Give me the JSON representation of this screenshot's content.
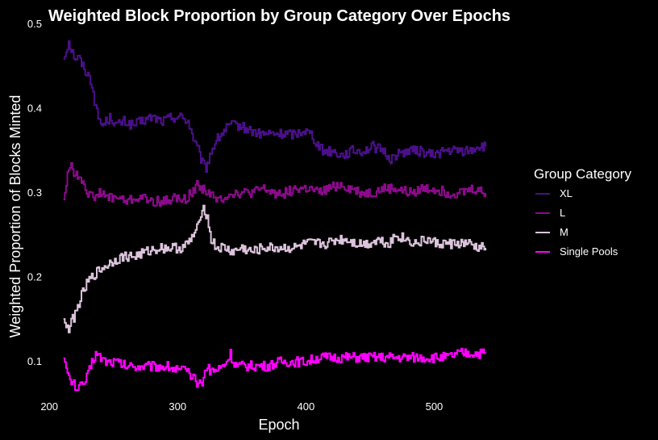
{
  "chart_data": {
    "type": "line",
    "title": "Weighted Block Proportion by Group Category Over Epochs",
    "xlabel": "Epoch",
    "ylabel": "Weighted Proportion of Blocks Minted",
    "xlim": [
      198,
      550
    ],
    "ylim": [
      0.06,
      0.5
    ],
    "x_ticks": [
      200,
      300,
      400,
      500
    ],
    "y_ticks": [
      0.1,
      0.2,
      0.3,
      0.4,
      0.5
    ],
    "grid": false,
    "legend": {
      "title": "Group Category",
      "position": "right"
    },
    "background": "#000000",
    "series": [
      {
        "name": "XL",
        "color": "#4b0f8a",
        "points": [
          [
            211,
            0.46
          ],
          [
            213,
            0.47
          ],
          [
            215,
            0.48
          ],
          [
            217,
            0.47
          ],
          [
            220,
            0.46
          ],
          [
            223,
            0.46
          ],
          [
            226,
            0.45
          ],
          [
            230,
            0.44
          ],
          [
            233,
            0.43
          ],
          [
            236,
            0.4
          ],
          [
            238,
            0.39
          ],
          [
            241,
            0.38
          ],
          [
            244,
            0.385
          ],
          [
            248,
            0.39
          ],
          [
            252,
            0.38
          ],
          [
            258,
            0.385
          ],
          [
            265,
            0.38
          ],
          [
            272,
            0.385
          ],
          [
            280,
            0.39
          ],
          [
            288,
            0.385
          ],
          [
            295,
            0.39
          ],
          [
            303,
            0.39
          ],
          [
            308,
            0.385
          ],
          [
            311,
            0.37
          ],
          [
            313,
            0.36
          ],
          [
            316,
            0.35
          ],
          [
            319,
            0.335
          ],
          [
            322,
            0.33
          ],
          [
            325,
            0.345
          ],
          [
            329,
            0.36
          ],
          [
            334,
            0.37
          ],
          [
            340,
            0.38
          ],
          [
            347,
            0.38
          ],
          [
            355,
            0.375
          ],
          [
            363,
            0.37
          ],
          [
            372,
            0.37
          ],
          [
            382,
            0.37
          ],
          [
            392,
            0.37
          ],
          [
            398,
            0.375
          ],
          [
            404,
            0.37
          ],
          [
            408,
            0.36
          ],
          [
            413,
            0.35
          ],
          [
            420,
            0.35
          ],
          [
            428,
            0.345
          ],
          [
            436,
            0.35
          ],
          [
            445,
            0.35
          ],
          [
            452,
            0.355
          ],
          [
            460,
            0.35
          ],
          [
            466,
            0.34
          ],
          [
            470,
            0.345
          ],
          [
            478,
            0.35
          ],
          [
            488,
            0.35
          ],
          [
            498,
            0.345
          ],
          [
            508,
            0.35
          ],
          [
            518,
            0.35
          ],
          [
            528,
            0.35
          ],
          [
            533,
            0.355
          ],
          [
            540,
            0.355
          ]
        ]
      },
      {
        "name": "L",
        "color": "#8b0a8b",
        "points": [
          [
            211,
            0.295
          ],
          [
            213,
            0.31
          ],
          [
            215,
            0.33
          ],
          [
            217,
            0.335
          ],
          [
            220,
            0.32
          ],
          [
            223,
            0.32
          ],
          [
            226,
            0.315
          ],
          [
            230,
            0.3
          ],
          [
            233,
            0.295
          ],
          [
            238,
            0.3
          ],
          [
            245,
            0.295
          ],
          [
            252,
            0.295
          ],
          [
            260,
            0.29
          ],
          [
            270,
            0.295
          ],
          [
            280,
            0.29
          ],
          [
            290,
            0.29
          ],
          [
            298,
            0.295
          ],
          [
            303,
            0.29
          ],
          [
            307,
            0.295
          ],
          [
            311,
            0.3
          ],
          [
            315,
            0.31
          ],
          [
            320,
            0.305
          ],
          [
            325,
            0.3
          ],
          [
            330,
            0.29
          ],
          [
            335,
            0.295
          ],
          [
            342,
            0.3
          ],
          [
            350,
            0.3
          ],
          [
            358,
            0.3
          ],
          [
            366,
            0.305
          ],
          [
            375,
            0.3
          ],
          [
            383,
            0.3
          ],
          [
            392,
            0.305
          ],
          [
            402,
            0.305
          ],
          [
            410,
            0.3
          ],
          [
            418,
            0.305
          ],
          [
            426,
            0.31
          ],
          [
            435,
            0.305
          ],
          [
            443,
            0.3
          ],
          [
            452,
            0.3
          ],
          [
            460,
            0.305
          ],
          [
            470,
            0.305
          ],
          [
            480,
            0.3
          ],
          [
            490,
            0.305
          ],
          [
            500,
            0.305
          ],
          [
            510,
            0.3
          ],
          [
            520,
            0.3
          ],
          [
            530,
            0.305
          ],
          [
            540,
            0.3
          ]
        ]
      },
      {
        "name": "M",
        "color": "#dcc4dc",
        "points": [
          [
            211,
            0.155
          ],
          [
            213,
            0.14
          ],
          [
            215,
            0.14
          ],
          [
            218,
            0.15
          ],
          [
            221,
            0.16
          ],
          [
            224,
            0.175
          ],
          [
            227,
            0.185
          ],
          [
            230,
            0.195
          ],
          [
            233,
            0.2
          ],
          [
            236,
            0.205
          ],
          [
            240,
            0.21
          ],
          [
            245,
            0.215
          ],
          [
            250,
            0.22
          ],
          [
            258,
            0.225
          ],
          [
            266,
            0.225
          ],
          [
            275,
            0.23
          ],
          [
            285,
            0.235
          ],
          [
            295,
            0.235
          ],
          [
            303,
            0.235
          ],
          [
            308,
            0.24
          ],
          [
            312,
            0.25
          ],
          [
            316,
            0.26
          ],
          [
            319,
            0.285
          ],
          [
            321,
            0.28
          ],
          [
            323,
            0.27
          ],
          [
            326,
            0.245
          ],
          [
            330,
            0.235
          ],
          [
            336,
            0.235
          ],
          [
            343,
            0.23
          ],
          [
            350,
            0.235
          ],
          [
            358,
            0.23
          ],
          [
            366,
            0.235
          ],
          [
            375,
            0.235
          ],
          [
            383,
            0.235
          ],
          [
            392,
            0.235
          ],
          [
            400,
            0.24
          ],
          [
            408,
            0.24
          ],
          [
            416,
            0.24
          ],
          [
            424,
            0.245
          ],
          [
            432,
            0.245
          ],
          [
            440,
            0.24
          ],
          [
            448,
            0.24
          ],
          [
            456,
            0.245
          ],
          [
            464,
            0.24
          ],
          [
            470,
            0.25
          ],
          [
            478,
            0.245
          ],
          [
            486,
            0.24
          ],
          [
            494,
            0.245
          ],
          [
            502,
            0.24
          ],
          [
            510,
            0.24
          ],
          [
            518,
            0.24
          ],
          [
            526,
            0.24
          ],
          [
            533,
            0.235
          ],
          [
            540,
            0.235
          ]
        ]
      },
      {
        "name": "Single Pools",
        "color": "#ff00ff",
        "points": [
          [
            211,
            0.11
          ],
          [
            213,
            0.09
          ],
          [
            215,
            0.08
          ],
          [
            218,
            0.075
          ],
          [
            221,
            0.07
          ],
          [
            224,
            0.07
          ],
          [
            227,
            0.075
          ],
          [
            230,
            0.085
          ],
          [
            233,
            0.1
          ],
          [
            236,
            0.11
          ],
          [
            240,
            0.105
          ],
          [
            245,
            0.1
          ],
          [
            252,
            0.1
          ],
          [
            260,
            0.095
          ],
          [
            268,
            0.095
          ],
          [
            276,
            0.095
          ],
          [
            284,
            0.095
          ],
          [
            292,
            0.095
          ],
          [
            300,
            0.09
          ],
          [
            305,
            0.09
          ],
          [
            309,
            0.085
          ],
          [
            312,
            0.08
          ],
          [
            315,
            0.075
          ],
          [
            318,
            0.075
          ],
          [
            320,
            0.08
          ],
          [
            322,
            0.095
          ],
          [
            325,
            0.09
          ],
          [
            330,
            0.09
          ],
          [
            335,
            0.095
          ],
          [
            338,
            0.1
          ],
          [
            341,
            0.11
          ],
          [
            343,
            0.1
          ],
          [
            346,
            0.095
          ],
          [
            352,
            0.095
          ],
          [
            360,
            0.095
          ],
          [
            370,
            0.095
          ],
          [
            380,
            0.1
          ],
          [
            390,
            0.1
          ],
          [
            400,
            0.1
          ],
          [
            410,
            0.105
          ],
          [
            420,
            0.105
          ],
          [
            430,
            0.105
          ],
          [
            440,
            0.105
          ],
          [
            450,
            0.105
          ],
          [
            460,
            0.105
          ],
          [
            470,
            0.105
          ],
          [
            480,
            0.105
          ],
          [
            490,
            0.105
          ],
          [
            500,
            0.105
          ],
          [
            510,
            0.105
          ],
          [
            520,
            0.11
          ],
          [
            530,
            0.11
          ],
          [
            540,
            0.11
          ]
        ]
      }
    ]
  }
}
